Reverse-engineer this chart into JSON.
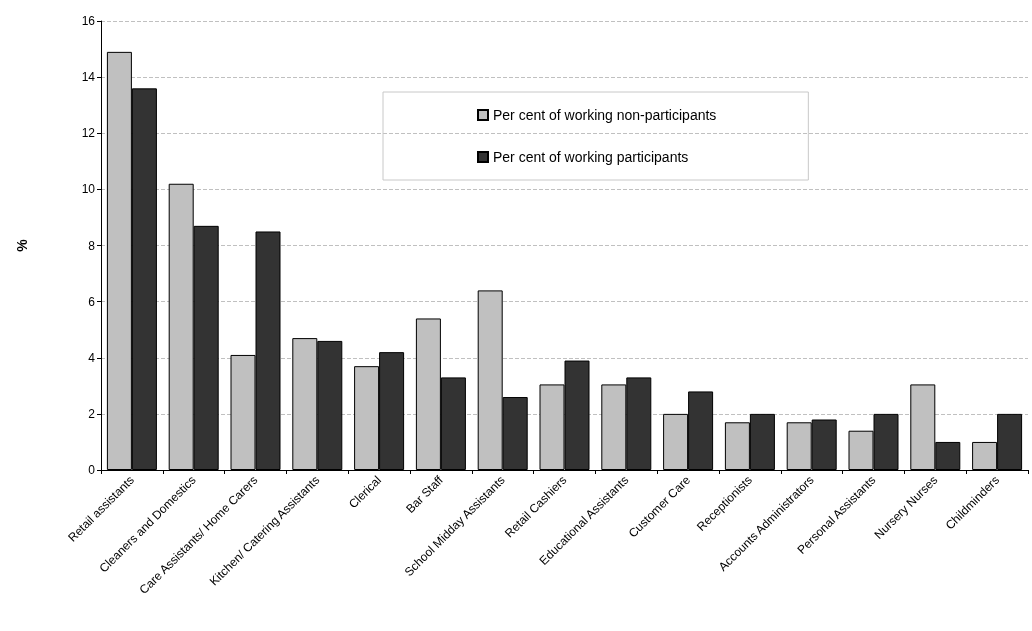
{
  "chart_data": {
    "type": "bar",
    "ylabel": "%",
    "categories": [
      "Retail assistants",
      "Cleaners and Domestics",
      "Care Assistants/ Home Carers",
      "Kitchen/ Catering Assistants",
      "Clerical",
      "Bar Staff",
      "School Midday Assistants",
      "Retail Cashiers",
      "Educational Assistants",
      "Customer Care",
      "Receptionists",
      "Accounts Administrators",
      "Personal Assistants",
      "Nursery Nurses",
      "Childminders"
    ],
    "series": [
      {
        "name": "Per cent of working non-participants",
        "color": "#c0c0c0",
        "values": [
          14.9,
          10.2,
          4.1,
          4.7,
          3.7,
          5.4,
          6.4,
          3.05,
          3.05,
          2.0,
          1.7,
          1.7,
          1.4,
          3.05,
          1.0
        ]
      },
      {
        "name": "Per cent of working participants",
        "color": "#333333",
        "values": [
          13.6,
          8.7,
          8.5,
          4.6,
          4.2,
          3.3,
          2.6,
          3.9,
          3.3,
          2.8,
          2.0,
          1.8,
          2.0,
          1.0,
          2.0
        ]
      }
    ],
    "ylim": [
      0,
      16
    ],
    "yticks": [
      0,
      2,
      4,
      6,
      8,
      10,
      12,
      14,
      16
    ],
    "grid": "y",
    "legend": "top"
  }
}
